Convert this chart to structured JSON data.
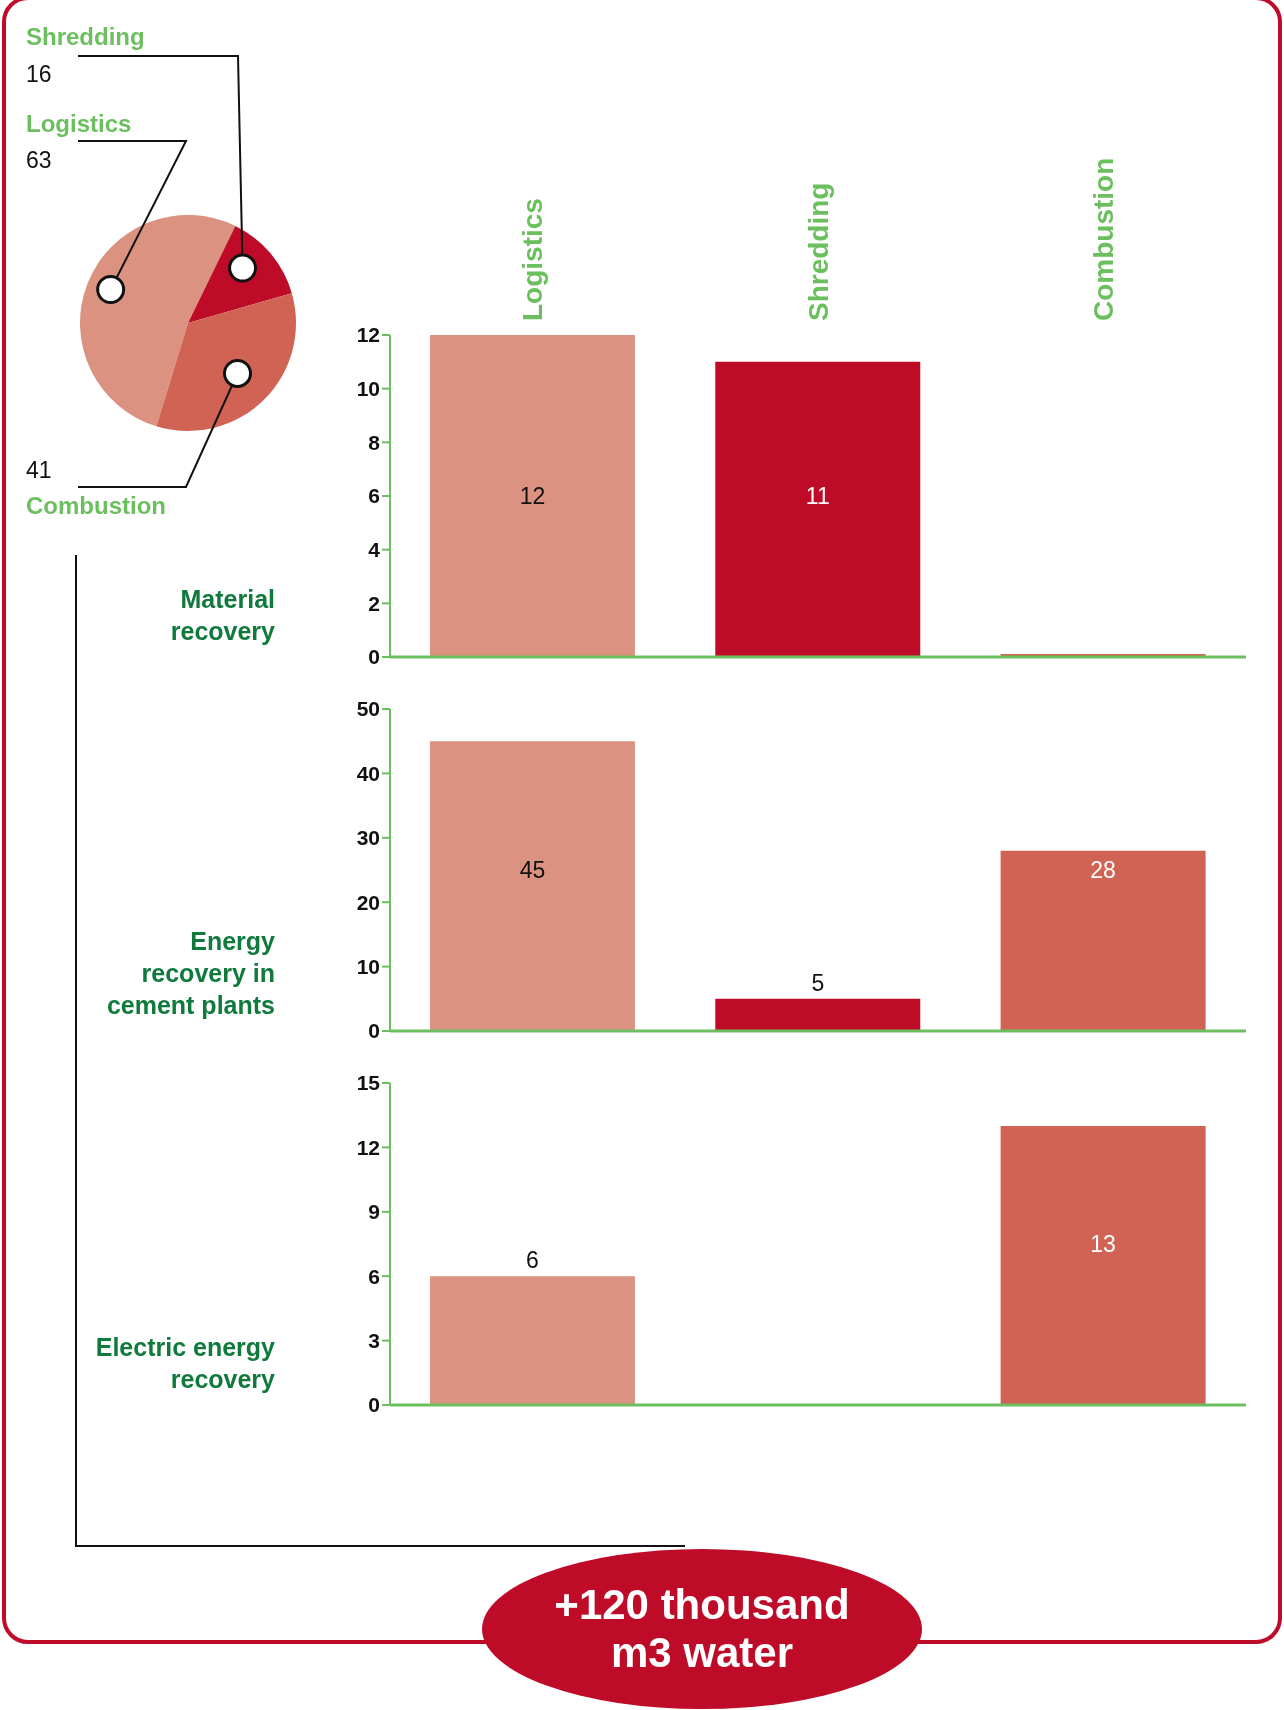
{
  "chart_data": [
    {
      "type": "pie",
      "categories": [
        "Logistics",
        "Shredding",
        "Combustion"
      ],
      "values": [
        63,
        16,
        41
      ],
      "colors": [
        "#dc9280",
        "#be0c28",
        "#d06353"
      ],
      "data_labels": true,
      "annotations": [
        "+120 thousand m3 water"
      ]
    },
    {
      "type": "bar",
      "ylabel": "Material recovery",
      "categories": [
        "Logistics",
        "Shredding",
        "Combustion"
      ],
      "values": [
        12,
        11,
        0
      ],
      "colors": [
        "#dc9280",
        "#be0c28",
        "#d06353"
      ],
      "ylim": [
        0,
        12
      ],
      "yticks": [
        0,
        2,
        4,
        6,
        8,
        10,
        12
      ],
      "value_labels": [
        "12",
        "11",
        null
      ]
    },
    {
      "type": "bar",
      "ylabel": "Energy recovery in cement plants",
      "categories": [
        null,
        null,
        null
      ],
      "values": [
        45,
        5,
        28
      ],
      "colors": [
        "#dc9280",
        "#be0c28",
        "#d06353"
      ],
      "ylim": [
        0,
        50
      ],
      "yticks": [
        0,
        10,
        20,
        30,
        40,
        50
      ],
      "data_labels": true,
      "tick_labels": "y"
    },
    {
      "type": "bar",
      "ylabel": "Electric energy recovery",
      "categories": [
        null,
        null,
        null
      ],
      "values": [
        6,
        null,
        13
      ],
      "colors": [
        "#dc9280",
        "#be0c28",
        "#d06353"
      ],
      "ylim": [
        0,
        15
      ],
      "yticks": [
        0,
        3,
        6,
        9,
        12,
        15
      ],
      "value_labels": [
        "6",
        null,
        "13"
      ],
      "tick_labels": "y"
    }
  ]
}
